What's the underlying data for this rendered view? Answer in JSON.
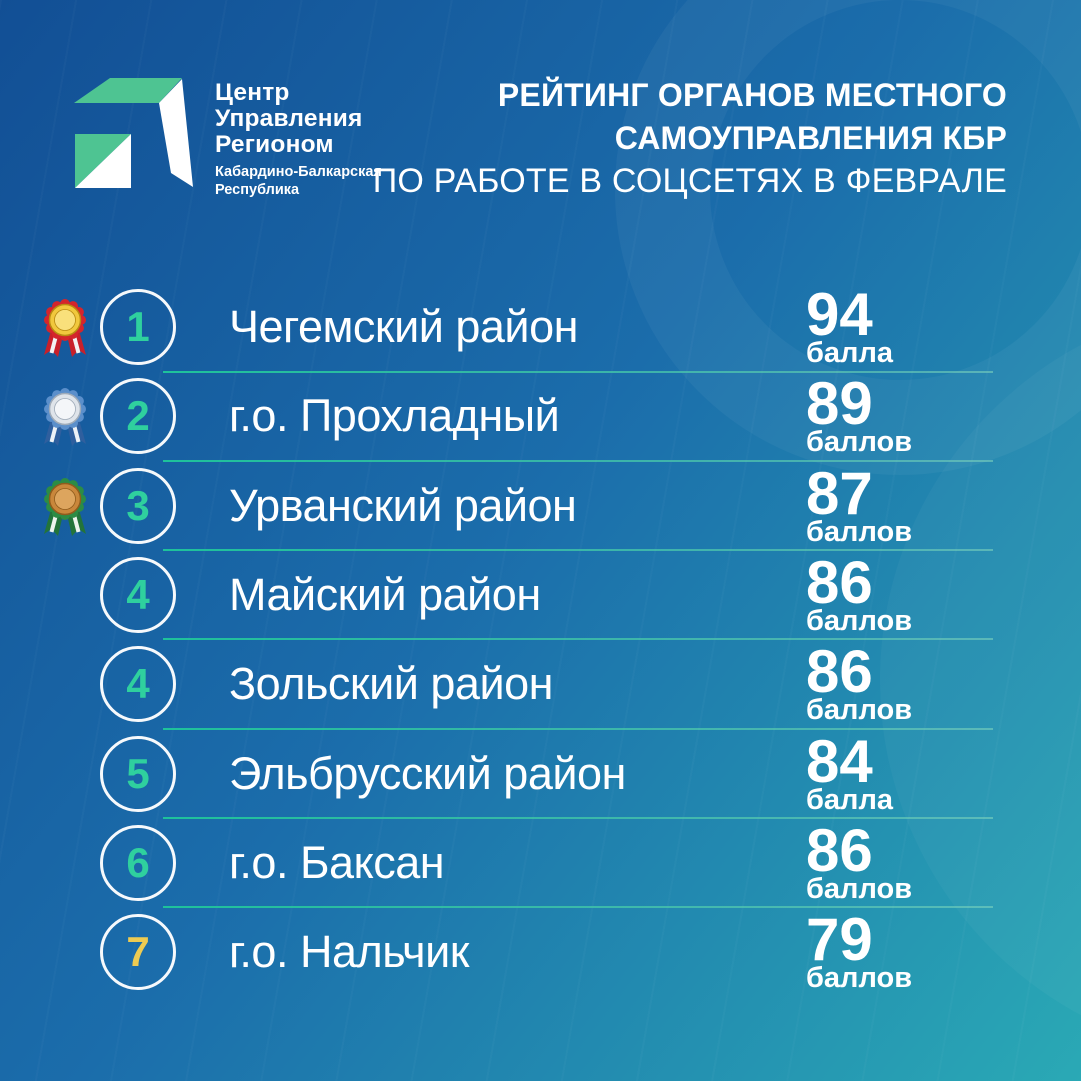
{
  "header": {
    "logo": {
      "org_lines": [
        "Центр",
        "Управления",
        "Регионом"
      ],
      "region_lines": [
        "Кабардино-Балкарская",
        "Республика"
      ]
    },
    "title_bold_line1": "РЕЙТИНГ ОРГАНОВ МЕСТНОГО",
    "title_bold_line2": "САМОУПРАВЛЕНИЯ КБР",
    "title_regular_line": "ПО РАБОТЕ В СОЦСЕТЯХ В ФЕВРАЛЕ"
  },
  "ranking": {
    "rows": [
      {
        "rank": "1",
        "name": "Чегемский район",
        "score": "94",
        "score_unit": "балла",
        "medal": "gold",
        "rank_color": "green"
      },
      {
        "rank": "2",
        "name": "г.о. Прохладный",
        "score": "89",
        "score_unit": "баллов",
        "medal": "silver",
        "rank_color": "green"
      },
      {
        "rank": "3",
        "name": "Урванский район",
        "score": "87",
        "score_unit": "баллов",
        "medal": "bronze",
        "rank_color": "green"
      },
      {
        "rank": "4",
        "name": "Майский район",
        "score": "86",
        "score_unit": "баллов",
        "medal": null,
        "rank_color": "green"
      },
      {
        "rank": "4",
        "name": "Зольский район",
        "score": "86",
        "score_unit": "баллов",
        "medal": null,
        "rank_color": "green"
      },
      {
        "rank": "5",
        "name": "Эльбрусский район",
        "score": "84",
        "score_unit": "балла",
        "medal": null,
        "rank_color": "green"
      },
      {
        "rank": "6",
        "name": "г.о. Баксан",
        "score": "86",
        "score_unit": "баллов",
        "medal": null,
        "rank_color": "green"
      },
      {
        "rank": "7",
        "name": "г.о. Нальчик",
        "score": "79",
        "score_unit": "баллов",
        "medal": null,
        "rank_color": "yellow"
      }
    ]
  },
  "chart_data": {
    "type": "table",
    "title": "РЕЙТИНГ ОРГАНОВ МЕСТНОГО САМОУПРАВЛЕНИЯ КБР ПО РАБОТЕ В СОЦСЕТЯХ В ФЕВРАЛЕ",
    "columns": [
      "rank",
      "municipality",
      "score"
    ],
    "rows": [
      [
        1,
        "Чегемский район",
        94
      ],
      [
        2,
        "г.о. Прохладный",
        89
      ],
      [
        3,
        "Урванский район",
        87
      ],
      [
        4,
        "Майский район",
        86
      ],
      [
        4,
        "Зольский район",
        86
      ],
      [
        5,
        "Эльбрусский район",
        84
      ],
      [
        6,
        "г.о. Баксан",
        86
      ],
      [
        7,
        "г.о. Нальчик",
        79
      ]
    ],
    "score_unit_labels": [
      "балла",
      "баллов",
      "баллов",
      "баллов",
      "баллов",
      "балла",
      "баллов",
      "баллов"
    ]
  },
  "colors": {
    "background_top_left": "#124f95",
    "background_mid": "#1b6dab",
    "background_bottom_right": "#2aa9b5",
    "separator": "#1ec29b",
    "rank_green": "#2fd09e",
    "rank_yellow": "#eecb52",
    "logo_green": "#4ec492",
    "text_white": "#ffffff",
    "medals": {
      "gold": {
        "rosette": "#d4252c",
        "ribbon": "#c8202a",
        "ribbon_stripe": "#f2f2f2",
        "disc": "#f1c83d",
        "disc_edge": "#b88a12",
        "disc_inner": "#f9e07b"
      },
      "silver": {
        "rosette": "#5b8fcb",
        "ribbon": "#2f5f9e",
        "ribbon_stripe": "#eef2f7",
        "disc": "#dfe4ea",
        "disc_edge": "#9fabb9",
        "disc_inner": "#f4f6f9"
      },
      "bronze": {
        "rosette": "#2c8c45",
        "ribbon": "#23743a",
        "ribbon_stripe": "#eef5ee",
        "disc": "#c9873b",
        "disc_edge": "#8f5c1d",
        "disc_inner": "#dda55e"
      }
    }
  }
}
